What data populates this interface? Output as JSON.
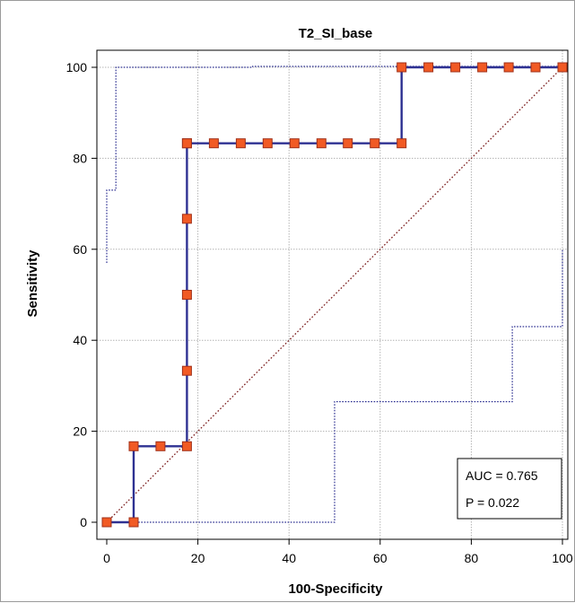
{
  "chart_data": {
    "type": "line",
    "title": "T2_SI_base",
    "xlabel": "100-Specificity",
    "ylabel": "Sensitivity",
    "xlim": [
      0,
      100
    ],
    "ylim": [
      0,
      100
    ],
    "xticks": [
      0,
      20,
      40,
      60,
      80,
      100
    ],
    "yticks": [
      0,
      20,
      40,
      60,
      80,
      100
    ],
    "grid": true,
    "series": [
      {
        "role": "roc",
        "color": "#2e3192",
        "marker_color": "#f15a24",
        "x": [
          0,
          5.9,
          5.9,
          11.8,
          17.6,
          17.6,
          17.6,
          17.6,
          17.6,
          17.6,
          23.5,
          29.4,
          35.3,
          41.2,
          47.1,
          52.9,
          58.8,
          64.7,
          64.7,
          70.6,
          76.5,
          82.4,
          88.2,
          94.1,
          100
        ],
        "y": [
          0,
          0,
          16.7,
          16.7,
          16.7,
          33.3,
          50,
          66.7,
          83.3,
          83.3,
          83.3,
          83.3,
          83.3,
          83.3,
          83.3,
          83.3,
          83.3,
          83.3,
          100,
          100,
          100,
          100,
          100,
          100,
          100
        ]
      },
      {
        "role": "upper-confidence-bound",
        "color": "#2e3192",
        "style": "dotted",
        "x": [
          0,
          0,
          2,
          2,
          32,
          32,
          100
        ],
        "y": [
          57,
          73,
          73,
          100,
          100,
          100.2,
          100.2
        ]
      },
      {
        "role": "lower-confidence-bound",
        "color": "#2e3192",
        "style": "dotted",
        "x": [
          0,
          50,
          50,
          89,
          89,
          100,
          100
        ],
        "y": [
          0,
          0,
          26.5,
          26.5,
          43,
          43,
          60
        ]
      },
      {
        "role": "diagonal",
        "color": "#7b1c1c",
        "style": "dotted",
        "x": [
          0,
          100
        ],
        "y": [
          0,
          100
        ]
      }
    ],
    "annotations": {
      "auc": "AUC = 0.765",
      "p": "P = 0.022",
      "placement": "bottom-right"
    }
  }
}
